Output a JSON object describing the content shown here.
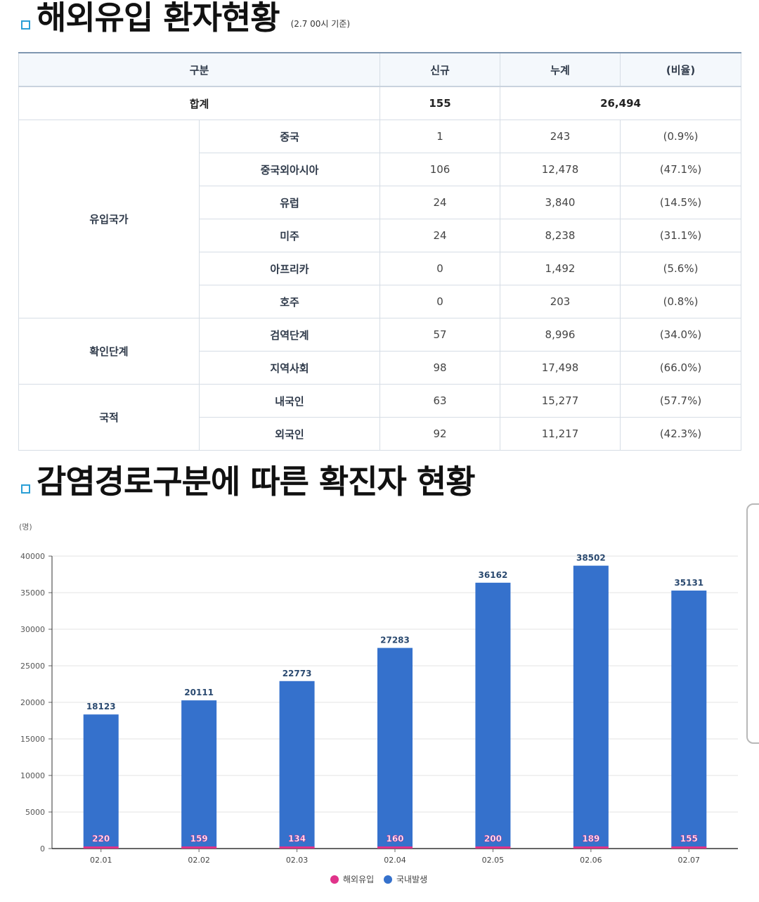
{
  "section1": {
    "title": "해외유입 환자현황",
    "note": "(2.7 00시 기준)"
  },
  "table": {
    "headers": [
      "구분",
      "신규",
      "누계",
      "(비율)"
    ],
    "total": {
      "label": "합계",
      "new": "155",
      "cumulative": "26,494"
    },
    "groups": [
      {
        "name": "유입국가",
        "rows": [
          {
            "label": "중국",
            "new": "1",
            "cumulative": "243",
            "ratio": "(0.9%)"
          },
          {
            "label": "중국외아시아",
            "new": "106",
            "cumulative": "12,478",
            "ratio": "(47.1%)"
          },
          {
            "label": "유럽",
            "new": "24",
            "cumulative": "3,840",
            "ratio": "(14.5%)"
          },
          {
            "label": "미주",
            "new": "24",
            "cumulative": "8,238",
            "ratio": "(31.1%)"
          },
          {
            "label": "아프리카",
            "new": "0",
            "cumulative": "1,492",
            "ratio": "(5.6%)"
          },
          {
            "label": "호주",
            "new": "0",
            "cumulative": "203",
            "ratio": "(0.8%)"
          }
        ]
      },
      {
        "name": "확인단계",
        "rows": [
          {
            "label": "검역단계",
            "new": "57",
            "cumulative": "8,996",
            "ratio": "(34.0%)"
          },
          {
            "label": "지역사회",
            "new": "98",
            "cumulative": "17,498",
            "ratio": "(66.0%)"
          }
        ]
      },
      {
        "name": "국적",
        "rows": [
          {
            "label": "내국인",
            "new": "63",
            "cumulative": "15,277",
            "ratio": "(57.7%)"
          },
          {
            "label": "외국인",
            "new": "92",
            "cumulative": "11,217",
            "ratio": "(42.3%)"
          }
        ]
      }
    ]
  },
  "section2": {
    "title": "감염경로구분에 따른 확진자 현황"
  },
  "chart_data": {
    "type": "bar",
    "unit_label": "(명)",
    "categories": [
      "02.01",
      "02.02",
      "02.03",
      "02.04",
      "02.05",
      "02.06",
      "02.07"
    ],
    "series": [
      {
        "name": "해외유입",
        "values": [
          220,
          159,
          134,
          160,
          200,
          189,
          155
        ],
        "color": "#e0338a"
      },
      {
        "name": "국내발생",
        "values": [
          18123,
          20111,
          22773,
          27283,
          36162,
          38502,
          35131
        ],
        "color": "#3571cc"
      }
    ],
    "ylim": [
      0,
      40000
    ],
    "yticks": [
      0,
      5000,
      10000,
      15000,
      20000,
      25000,
      30000,
      35000,
      40000
    ],
    "grid": true,
    "legend": "bottom-center"
  }
}
